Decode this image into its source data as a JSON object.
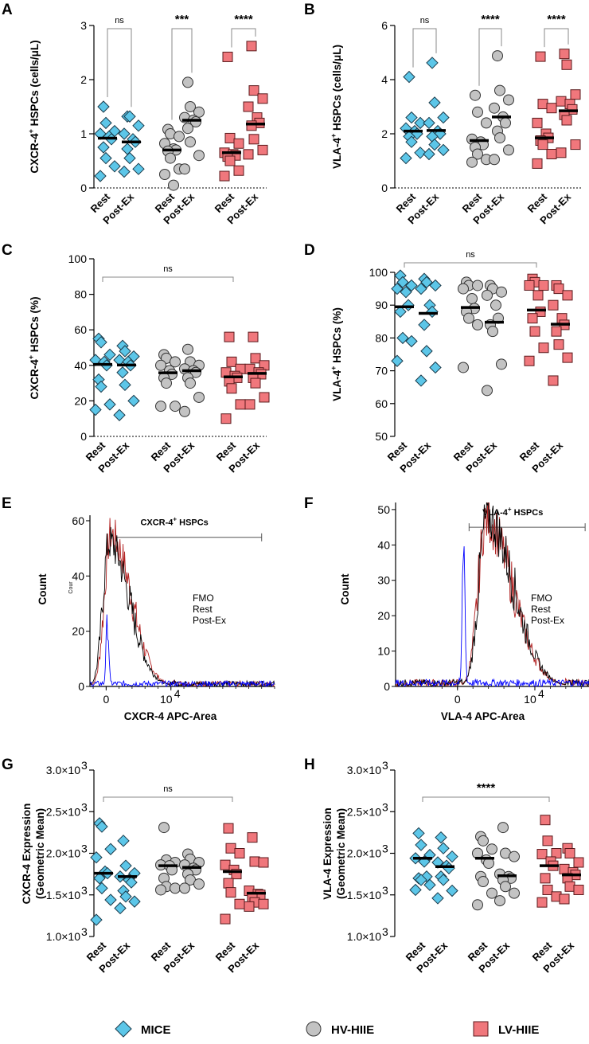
{
  "colors": {
    "mice": "#5cc6e8",
    "hv": "#c3c3c3",
    "lv": "#f0777c",
    "fmo": "#0000ff",
    "rest": "#000000",
    "postex": "#b22222"
  },
  "legend": [
    {
      "key": "mice",
      "label": "MICE",
      "marker": "diamond"
    },
    {
      "key": "hv",
      "label": "HV-HIIE",
      "marker": "circle"
    },
    {
      "key": "lv",
      "label": "LV-HIIE",
      "marker": "square"
    }
  ],
  "flow_legend": {
    "fmo": "FMO",
    "rest": "Rest",
    "postex": "Post-Ex"
  },
  "chart_data": [
    {
      "panel": "A",
      "type": "scatter",
      "ylabel_main": "CXCR-4",
      "ylabel_sup": "+",
      "ylabel_rest": " HSPCs (cells/μL)",
      "ylim": [
        0,
        3
      ],
      "yticks": [
        0,
        1,
        2,
        3
      ],
      "ytick_labels": [
        "0",
        "1",
        "2",
        "3"
      ],
      "categories": [
        "Rest",
        "Post-Ex",
        "Rest",
        "Post-Ex",
        "Rest",
        "Post-Ex"
      ],
      "groups": [
        "mice",
        "mice",
        "hv",
        "hv",
        "lv",
        "lv"
      ],
      "medians": [
        0.92,
        0.85,
        0.7,
        1.25,
        0.65,
        1.18
      ],
      "points": [
        [
          1.5,
          1.2,
          1.05,
          1.0,
          0.95,
          0.9,
          0.75,
          0.55,
          0.4,
          0.22
        ],
        [
          1.32,
          1.32,
          1.15,
          1.0,
          0.9,
          0.85,
          0.72,
          0.55,
          0.35,
          0.3
        ],
        [
          1.08,
          1.0,
          0.95,
          0.82,
          0.72,
          0.7,
          0.68,
          0.55,
          0.35,
          0.25,
          0.05
        ],
        [
          1.95,
          1.5,
          1.4,
          1.3,
          1.25,
          1.22,
          1.1,
          0.85,
          0.6,
          0.35
        ],
        [
          2.42,
          0.92,
          0.82,
          0.65,
          0.62,
          0.6,
          0.58,
          0.5,
          0.32,
          0.22
        ],
        [
          2.62,
          1.8,
          1.65,
          1.5,
          1.3,
          1.2,
          1.15,
          0.9,
          0.7,
          0.62
        ]
      ],
      "comparisons": [
        {
          "from": 0,
          "to": 1,
          "label": "ns"
        },
        {
          "from": 2,
          "to": 3,
          "label": "***"
        },
        {
          "from": 4,
          "to": 5,
          "label": "****"
        }
      ]
    },
    {
      "panel": "B",
      "type": "scatter",
      "ylabel_main": "VLA-4",
      "ylabel_sup": "+",
      "ylabel_rest": " HSPCs (cells/μL)",
      "ylim": [
        0,
        6
      ],
      "yticks": [
        0,
        2,
        4,
        6
      ],
      "ytick_labels": [
        "0",
        "2",
        "4",
        "6"
      ],
      "categories": [
        "Rest",
        "Post-Ex",
        "Rest",
        "Post-Ex",
        "Rest",
        "Post-Ex"
      ],
      "groups": [
        "mice",
        "mice",
        "hv",
        "hv",
        "lv",
        "lv"
      ],
      "medians": [
        2.1,
        2.12,
        1.75,
        2.62,
        1.85,
        2.85
      ],
      "points": [
        [
          4.1,
          2.6,
          2.4,
          2.2,
          2.1,
          2.0,
          1.9,
          1.7,
          1.3,
          1.1
        ],
        [
          4.62,
          3.15,
          2.6,
          2.4,
          2.1,
          2.0,
          1.9,
          1.6,
          1.4,
          1.25
        ],
        [
          3.42,
          2.8,
          2.4,
          1.8,
          1.7,
          1.6,
          1.5,
          1.25,
          1.05,
          0.95
        ],
        [
          4.88,
          3.6,
          3.25,
          2.95,
          2.62,
          2.4,
          2.1,
          1.85,
          1.4,
          1.05
        ],
        [
          4.85,
          3.1,
          2.95,
          2.4,
          2.0,
          1.85,
          1.75,
          1.6,
          1.25,
          0.9
        ],
        [
          4.95,
          4.55,
          3.45,
          3.2,
          3.1,
          2.9,
          2.7,
          2.5,
          1.6,
          1.3
        ]
      ],
      "comparisons": [
        {
          "from": 0,
          "to": 1,
          "label": "ns"
        },
        {
          "from": 2,
          "to": 3,
          "label": "****"
        },
        {
          "from": 4,
          "to": 5,
          "label": "****"
        }
      ]
    },
    {
      "panel": "C",
      "type": "scatter",
      "ylabel_main": "CXCR-4",
      "ylabel_sup": "+",
      "ylabel_rest": " HSPCs (%)",
      "ylim": [
        0,
        100
      ],
      "yticks": [
        0,
        20,
        40,
        60,
        80,
        100
      ],
      "ytick_labels": [
        "0",
        "20",
        "40",
        "60",
        "80",
        "100"
      ],
      "categories": [
        "Rest",
        "Post-Ex",
        "Rest",
        "Post-Ex",
        "Rest",
        "Post-Ex"
      ],
      "groups": [
        "mice",
        "mice",
        "hv",
        "hv",
        "lv",
        "lv"
      ],
      "medians": [
        40.5,
        40.2,
        35.8,
        37.0,
        33.5,
        35.5
      ],
      "points": [
        [
          55,
          53,
          46,
          43,
          42,
          40,
          32,
          28,
          18,
          15
        ],
        [
          51,
          48,
          45,
          43,
          42,
          40,
          36,
          29,
          20,
          12
        ],
        [
          46,
          44,
          42,
          40,
          37,
          35,
          33,
          30,
          17,
          17
        ],
        [
          49,
          42,
          40,
          38,
          37,
          36,
          33,
          30,
          22,
          14
        ],
        [
          56,
          42,
          38,
          36,
          34,
          33,
          31,
          27,
          18,
          10
        ],
        [
          56,
          44,
          40,
          38,
          36,
          35,
          33,
          30,
          22,
          18
        ]
      ],
      "comparisons": [
        {
          "from": 0,
          "to": 4,
          "label": "ns"
        }
      ]
    },
    {
      "panel": "D",
      "type": "scatter",
      "ylabel_main": "VLA-4",
      "ylabel_sup": "+",
      "ylabel_rest": " HSPCs (%)",
      "ylim": [
        50,
        100
      ],
      "yticks": [
        50,
        60,
        70,
        80,
        90,
        100
      ],
      "ytick_labels": [
        "50",
        "60",
        "70",
        "80",
        "90",
        "100"
      ],
      "categories": [
        "Rest",
        "Post-Ex",
        "Rest",
        "Post-Ex",
        "Rest",
        "Post-Ex"
      ],
      "groups": [
        "mice",
        "mice",
        "hv",
        "hv",
        "lv",
        "lv"
      ],
      "medians": [
        89.5,
        87.5,
        89.3,
        84.8,
        88.5,
        84.2
      ],
      "points": [
        [
          99,
          97,
          96,
          95,
          94,
          90,
          88,
          80,
          79,
          73
        ],
        [
          98,
          97,
          96,
          95,
          90,
          88,
          84,
          76,
          71,
          67
        ],
        [
          97,
          96,
          96,
          95,
          92,
          89,
          88,
          86,
          84,
          71
        ],
        [
          96,
          95,
          94,
          93,
          90,
          86,
          84,
          82,
          72,
          64
        ],
        [
          98,
          97,
          96,
          96,
          93,
          88,
          86,
          82,
          77,
          73
        ],
        [
          96,
          95,
          93,
          90,
          86,
          84,
          82,
          78,
          74,
          67
        ]
      ],
      "comparisons": [
        {
          "from": 0,
          "to": 4,
          "label": "ns"
        }
      ]
    },
    {
      "panel": "E",
      "type": "histogram",
      "ylabel": "Count",
      "ylabel_small": "Cour",
      "xlabel": "CXCR-4 APC-Area",
      "ylim": [
        0,
        62
      ],
      "yticks": [
        0,
        20,
        40,
        60
      ],
      "ytick_labels": [
        "0",
        "20",
        "40",
        "60"
      ],
      "xticks": [
        0,
        10000
      ],
      "xtick_labels": [
        "0",
        "10^4"
      ],
      "xlim": [
        -2500,
        26000
      ],
      "gate": {
        "label": "CXCR-4",
        "sup": "+",
        "rest": " HSPCs",
        "from": 1500,
        "to": 24000,
        "y": 54
      },
      "series": [
        {
          "key": "fmo",
          "center": 200,
          "width": 220,
          "peak": 23
        },
        {
          "key": "rest",
          "center": 450,
          "width": 1200,
          "peak": 52
        },
        {
          "key": "postex",
          "center": 700,
          "width": 1200,
          "peak": 55
        }
      ]
    },
    {
      "panel": "F",
      "type": "histogram",
      "ylabel": "Count",
      "xlabel": "VLA-4 APC-Area",
      "ylim": [
        0,
        52
      ],
      "yticks": [
        0,
        10,
        20,
        30,
        40,
        50
      ],
      "ytick_labels": [
        "0",
        "10",
        "20",
        "30",
        "40",
        "50"
      ],
      "xticks": [
        0,
        10000
      ],
      "xtick_labels": [
        "0",
        "10^4"
      ],
      "xlim": [
        -8000,
        17000
      ],
      "gate": {
        "label": "VLA-4",
        "sup": "+",
        "rest": " HSPCs",
        "from": 1500,
        "to": 16500,
        "y": 45
      },
      "series": [
        {
          "key": "fmo",
          "center": 800,
          "width": 180,
          "peak": 40
        },
        {
          "key": "rest",
          "center": 3800,
          "width": 1300,
          "peak": 48
        },
        {
          "key": "postex",
          "center": 3700,
          "width": 1300,
          "peak": 47
        }
      ]
    },
    {
      "panel": "G",
      "type": "scatter",
      "ylabel_line1": "CXCR-4 Expression",
      "ylabel_line2": "(Geometric Mean)",
      "ylim": [
        1000,
        3000
      ],
      "yticks": [
        1000,
        1500,
        2000,
        2500,
        3000
      ],
      "ytick_labels": [
        "1.0×10",
        "1.5×10",
        "2.0×10",
        "2.5×10",
        "3.0×10"
      ],
      "ytick_sup": "3",
      "categories": [
        "Rest",
        "Post-Ex",
        "Rest",
        "Post-Ex",
        "Rest",
        "Post-Ex"
      ],
      "groups": [
        "mice",
        "mice",
        "hv",
        "hv",
        "lv",
        "lv"
      ],
      "medians": [
        1760,
        1720,
        1850,
        1830,
        1780,
        1520
      ],
      "points": [
        [
          2360,
          2320,
          2050,
          1950,
          1780,
          1760,
          1700,
          1580,
          1440,
          1200
        ],
        [
          2150,
          1850,
          1760,
          1720,
          1680,
          1650,
          1550,
          1480,
          1420,
          1340
        ],
        [
          2310,
          1920,
          1890,
          1860,
          1850,
          1800,
          1700,
          1600,
          1580,
          1560
        ],
        [
          1990,
          1930,
          1890,
          1860,
          1820,
          1800,
          1750,
          1680,
          1630,
          1580
        ],
        [
          2300,
          2060,
          2000,
          1860,
          1800,
          1750,
          1640,
          1530,
          1390,
          1210
        ],
        [
          2190,
          1900,
          1890,
          1550,
          1510,
          1500,
          1470,
          1410,
          1390,
          1360
        ]
      ],
      "comparisons": [
        {
          "from": 0,
          "to": 4,
          "label": "ns"
        }
      ]
    },
    {
      "panel": "H",
      "type": "scatter",
      "ylabel_line1": "VLA-4 Expression",
      "ylabel_line2": "(Geometric Mean)",
      "ylim": [
        1000,
        3000
      ],
      "yticks": [
        1000,
        1500,
        2000,
        2500,
        3000
      ],
      "ytick_labels": [
        "1.0×10",
        "1.5×10",
        "2.0×10",
        "2.5×10",
        "3.0×10"
      ],
      "ytick_sup": "3",
      "categories": [
        "Rest",
        "Post-Ex",
        "Rest",
        "Post-Ex",
        "Rest",
        "Post-Ex"
      ],
      "groups": [
        "mice",
        "mice",
        "hv",
        "hv",
        "lv",
        "lv"
      ],
      "medians": [
        1940,
        1840,
        1940,
        1730,
        1850,
        1740
      ],
      "points": [
        [
          2240,
          2100,
          1980,
          1940,
          1900,
          1720,
          1700,
          1680,
          1620,
          1560
        ],
        [
          2190,
          2060,
          1960,
          1890,
          1850,
          1820,
          1720,
          1680,
          1550,
          1460
        ],
        [
          2200,
          2150,
          2050,
          2000,
          1920,
          1880,
          1720,
          1660,
          1520,
          1380
        ],
        [
          2310,
          2000,
          1960,
          1750,
          1720,
          1700,
          1680,
          1600,
          1520,
          1430
        ],
        [
          2400,
          2150,
          2000,
          1990,
          1900,
          1850,
          1700,
          1560,
          1480,
          1410
        ],
        [
          2060,
          2000,
          1890,
          1810,
          1770,
          1740,
          1700,
          1600,
          1560,
          1450
        ]
      ],
      "comparisons": [
        {
          "from": 0,
          "to": 4,
          "label": "****"
        }
      ]
    }
  ]
}
